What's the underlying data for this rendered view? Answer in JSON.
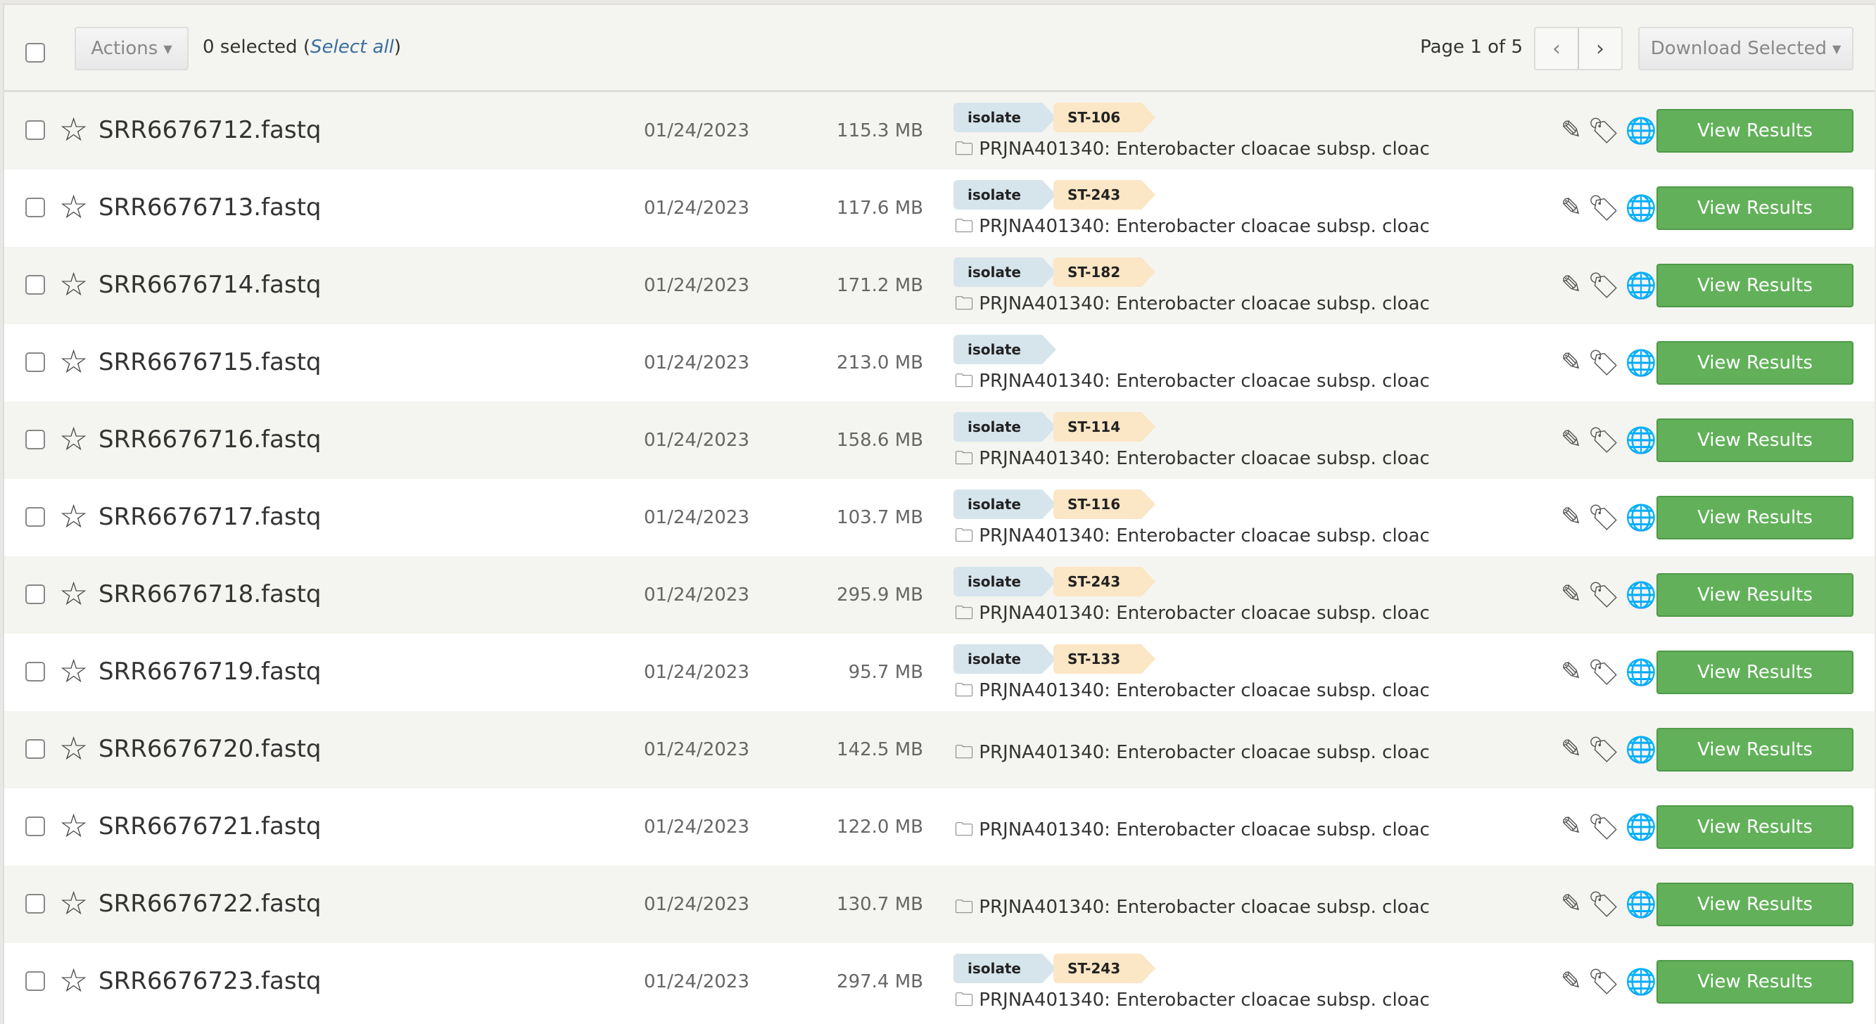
{
  "toolbar": {
    "actions_label": "Actions",
    "selected_text": "0 selected (",
    "select_all": "Select all",
    "selected_close": ")",
    "page_info": "Page 1 of 5",
    "prev": "‹",
    "next": "›",
    "download_label": "Download Selected"
  },
  "colors": {
    "view_button": "#62b15a",
    "isolate_tag": "#d6e5ec",
    "st_tag": "#fbe6c5",
    "link": "#3a6f9f"
  },
  "rows": [
    {
      "name": "SRR6676712.fastq",
      "date": "01/24/2023",
      "size": "115.3 MB",
      "tags": [
        "isolate",
        "ST-106"
      ],
      "project": "PRJNA401340: Enterobacter cloacae subsp. cloac",
      "action": "View Results"
    },
    {
      "name": "SRR6676713.fastq",
      "date": "01/24/2023",
      "size": "117.6 MB",
      "tags": [
        "isolate",
        "ST-243"
      ],
      "project": "PRJNA401340: Enterobacter cloacae subsp. cloac",
      "action": "View Results"
    },
    {
      "name": "SRR6676714.fastq",
      "date": "01/24/2023",
      "size": "171.2 MB",
      "tags": [
        "isolate",
        "ST-182"
      ],
      "project": "PRJNA401340: Enterobacter cloacae subsp. cloac",
      "action": "View Results"
    },
    {
      "name": "SRR6676715.fastq",
      "date": "01/24/2023",
      "size": "213.0 MB",
      "tags": [
        "isolate"
      ],
      "project": "PRJNA401340: Enterobacter cloacae subsp. cloac",
      "action": "View Results"
    },
    {
      "name": "SRR6676716.fastq",
      "date": "01/24/2023",
      "size": "158.6 MB",
      "tags": [
        "isolate",
        "ST-114"
      ],
      "project": "PRJNA401340: Enterobacter cloacae subsp. cloac",
      "action": "View Results"
    },
    {
      "name": "SRR6676717.fastq",
      "date": "01/24/2023",
      "size": "103.7 MB",
      "tags": [
        "isolate",
        "ST-116"
      ],
      "project": "PRJNA401340: Enterobacter cloacae subsp. cloac",
      "action": "View Results"
    },
    {
      "name": "SRR6676718.fastq",
      "date": "01/24/2023",
      "size": "295.9 MB",
      "tags": [
        "isolate",
        "ST-243"
      ],
      "project": "PRJNA401340: Enterobacter cloacae subsp. cloac",
      "action": "View Results"
    },
    {
      "name": "SRR6676719.fastq",
      "date": "01/24/2023",
      "size": "95.7 MB",
      "tags": [
        "isolate",
        "ST-133"
      ],
      "project": "PRJNA401340: Enterobacter cloacae subsp. cloac",
      "action": "View Results"
    },
    {
      "name": "SRR6676720.fastq",
      "date": "01/24/2023",
      "size": "142.5 MB",
      "tags": [],
      "project": "PRJNA401340: Enterobacter cloacae subsp. cloac",
      "action": "View Results"
    },
    {
      "name": "SRR6676721.fastq",
      "date": "01/24/2023",
      "size": "122.0 MB",
      "tags": [],
      "project": "PRJNA401340: Enterobacter cloacae subsp. cloac",
      "action": "View Results"
    },
    {
      "name": "SRR6676722.fastq",
      "date": "01/24/2023",
      "size": "130.7 MB",
      "tags": [],
      "project": "PRJNA401340: Enterobacter cloacae subsp. cloac",
      "action": "View Results"
    },
    {
      "name": "SRR6676723.fastq",
      "date": "01/24/2023",
      "size": "297.4 MB",
      "tags": [
        "isolate",
        "ST-243"
      ],
      "project": "PRJNA401340: Enterobacter cloacae subsp. cloac",
      "action": "View Results"
    }
  ]
}
